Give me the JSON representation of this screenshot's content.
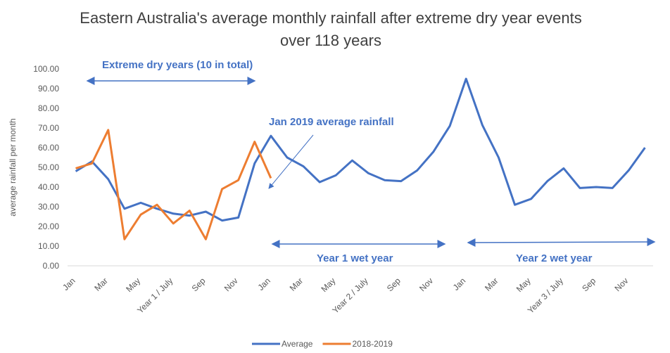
{
  "chart_data": {
    "type": "line",
    "title": "Eastern Australia's average monthly rainfall after extreme dry year events over 118 years",
    "y_label": "average rainfall per month",
    "annotations": [
      "Extreme dry years (10 in total)",
      "Jan 2019  average rainfall",
      "Year 1 wet year",
      "Year 2 wet year"
    ],
    "categories": [
      "Jan",
      null,
      "Mar",
      null,
      "May",
      null,
      "Year 1 / July",
      null,
      "Sep",
      null,
      "Nov",
      null,
      "Jan",
      null,
      "Mar",
      null,
      "May",
      null,
      "Year 2 / July",
      null,
      "Sep",
      null,
      "Nov",
      null,
      "Jan",
      null,
      "Mar",
      null,
      "May",
      null,
      "Year 3 / July",
      null,
      "Sep",
      null,
      "Nov",
      null
    ],
    "series": [
      {
        "name": "Average",
        "color": "#4472c4",
        "values": [
          48,
          53,
          44,
          29,
          32,
          29,
          26.5,
          25.5,
          27.5,
          23,
          24.5,
          52,
          66,
          55,
          50.5,
          42.5,
          46,
          53.5,
          47,
          43.5,
          43,
          48.5,
          58,
          71,
          95,
          71.5,
          55,
          31,
          34,
          43,
          49.5,
          39.5,
          40,
          39.5,
          48.5,
          60
        ]
      },
      {
        "name": "2018-2019",
        "color": "#ed7d31",
        "values": [
          49.5,
          52,
          69,
          13.5,
          26,
          31,
          21.5,
          28,
          13.5,
          39,
          43.5,
          63,
          44.5,
          null,
          null,
          null,
          null,
          null,
          null,
          null,
          null,
          null,
          null,
          null,
          null,
          null,
          null,
          null,
          null,
          null,
          null,
          null,
          null,
          null,
          null,
          null
        ]
      }
    ],
    "ylim": [
      0,
      100
    ],
    "yticks": [
      {
        "value": 0,
        "label": "0.00"
      },
      {
        "value": 10,
        "label": "10.00"
      },
      {
        "value": 20,
        "label": "20.00"
      },
      {
        "value": 30,
        "label": "30.00"
      },
      {
        "value": 40,
        "label": "40.00"
      },
      {
        "value": 50,
        "label": "50.00"
      },
      {
        "value": 60,
        "label": "60.00"
      },
      {
        "value": 70,
        "label": "70.00"
      },
      {
        "value": 80,
        "label": "80.00"
      },
      {
        "value": 90,
        "label": "90.00"
      },
      {
        "value": 100,
        "label": "100.00"
      }
    ],
    "grid": false,
    "legend": "bottom"
  }
}
